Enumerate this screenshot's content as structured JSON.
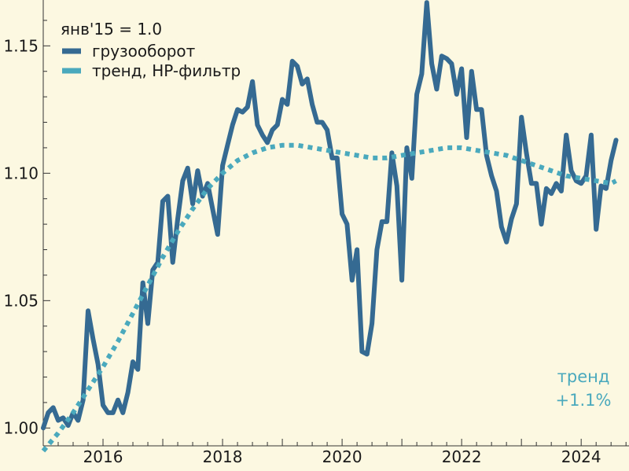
{
  "colors": {
    "background": "#fcf8e1",
    "series_main": "#356a92",
    "series_trend": "#4aa9bd",
    "axis": "#333333"
  },
  "legend": {
    "title": "янв'15 = 1.0",
    "items": [
      "грузооборот",
      "тренд, HP-фильтр"
    ]
  },
  "annotation": {
    "line1": "тренд",
    "line2": "+1.1%"
  },
  "chart_data": {
    "type": "line",
    "title": "",
    "xlabel": "",
    "ylabel": "",
    "xlim": [
      2015.0,
      2024.8
    ],
    "ylim": [
      0.993,
      1.168
    ],
    "xticks": [
      2016,
      2018,
      2020,
      2022,
      2024
    ],
    "xtick_labels": [
      "2016",
      "2018",
      "2020",
      "2022",
      "2024"
    ],
    "yticks": [
      1.0,
      1.05,
      1.1,
      1.15
    ],
    "ytick_labels": [
      "1.00",
      "1.05",
      "1.10",
      "1.15"
    ],
    "grid": false,
    "legend_position": "top-left",
    "series": [
      {
        "name": "грузооборот",
        "x": [
          2015.0,
          2015.083,
          2015.167,
          2015.25,
          2015.333,
          2015.417,
          2015.5,
          2015.583,
          2015.667,
          2015.75,
          2015.833,
          2015.917,
          2016.0,
          2016.083,
          2016.167,
          2016.25,
          2016.333,
          2016.417,
          2016.5,
          2016.583,
          2016.667,
          2016.75,
          2016.833,
          2016.917,
          2017.0,
          2017.083,
          2017.167,
          2017.25,
          2017.333,
          2017.417,
          2017.5,
          2017.583,
          2017.667,
          2017.75,
          2017.833,
          2017.917,
          2018.0,
          2018.083,
          2018.167,
          2018.25,
          2018.333,
          2018.417,
          2018.5,
          2018.583,
          2018.667,
          2018.75,
          2018.833,
          2018.917,
          2019.0,
          2019.083,
          2019.167,
          2019.25,
          2019.333,
          2019.417,
          2019.5,
          2019.583,
          2019.667,
          2019.75,
          2019.833,
          2019.917,
          2020.0,
          2020.083,
          2020.167,
          2020.25,
          2020.333,
          2020.417,
          2020.5,
          2020.583,
          2020.667,
          2020.75,
          2020.833,
          2020.917,
          2021.0,
          2021.083,
          2021.167,
          2021.25,
          2021.333,
          2021.417,
          2021.5,
          2021.583,
          2021.667,
          2021.75,
          2021.833,
          2021.917,
          2022.0,
          2022.083,
          2022.167,
          2022.25,
          2022.333,
          2022.417,
          2022.5,
          2022.583,
          2022.667,
          2022.75,
          2022.833,
          2022.917,
          2023.0,
          2023.083,
          2023.167,
          2023.25,
          2023.333,
          2023.417,
          2023.5,
          2023.583,
          2023.667,
          2023.75,
          2023.833,
          2023.917,
          2024.0,
          2024.083,
          2024.167,
          2024.25,
          2024.333,
          2024.417,
          2024.5,
          2024.583
        ],
        "values": [
          1.0,
          1.006,
          1.008,
          1.003,
          1.004,
          1.001,
          1.006,
          1.003,
          1.011,
          1.046,
          1.035,
          1.025,
          1.009,
          1.006,
          1.006,
          1.011,
          1.006,
          1.014,
          1.026,
          1.023,
          1.057,
          1.041,
          1.062,
          1.065,
          1.089,
          1.091,
          1.065,
          1.082,
          1.097,
          1.102,
          1.088,
          1.101,
          1.091,
          1.096,
          1.086,
          1.076,
          1.103,
          1.111,
          1.119,
          1.125,
          1.124,
          1.126,
          1.136,
          1.119,
          1.115,
          1.112,
          1.117,
          1.119,
          1.129,
          1.127,
          1.144,
          1.142,
          1.135,
          1.137,
          1.127,
          1.12,
          1.12,
          1.117,
          1.106,
          1.106,
          1.084,
          1.08,
          1.058,
          1.07,
          1.03,
          1.029,
          1.041,
          1.07,
          1.081,
          1.081,
          1.108,
          1.095,
          1.058,
          1.11,
          1.098,
          1.131,
          1.139,
          1.167,
          1.143,
          1.133,
          1.146,
          1.145,
          1.143,
          1.131,
          1.141,
          1.114,
          1.14,
          1.125,
          1.125,
          1.107,
          1.099,
          1.093,
          1.079,
          1.073,
          1.082,
          1.088,
          1.122,
          1.108,
          1.096,
          1.096,
          1.08,
          1.094,
          1.092,
          1.096,
          1.093,
          1.115,
          1.101,
          1.097,
          1.096,
          1.099,
          1.115,
          1.078,
          1.095,
          1.094,
          1.105,
          1.113
        ]
      },
      {
        "name": "тренд, HP-фильтр",
        "x": [
          2015.0,
          2015.25,
          2015.5,
          2015.75,
          2016.0,
          2016.25,
          2016.5,
          2016.75,
          2017.0,
          2017.25,
          2017.5,
          2017.75,
          2018.0,
          2018.25,
          2018.5,
          2018.75,
          2019.0,
          2019.25,
          2019.5,
          2019.75,
          2020.0,
          2020.25,
          2020.5,
          2020.75,
          2021.0,
          2021.25,
          2021.5,
          2021.75,
          2022.0,
          2022.25,
          2022.5,
          2022.75,
          2023.0,
          2023.25,
          2023.5,
          2023.75,
          2024.0,
          2024.25,
          2024.5,
          2024.583
        ],
        "values": [
          0.991,
          0.998,
          1.006,
          1.015,
          1.024,
          1.034,
          1.045,
          1.056,
          1.067,
          1.077,
          1.086,
          1.094,
          1.1,
          1.105,
          1.108,
          1.11,
          1.111,
          1.111,
          1.11,
          1.109,
          1.108,
          1.107,
          1.106,
          1.106,
          1.107,
          1.108,
          1.109,
          1.11,
          1.11,
          1.109,
          1.108,
          1.107,
          1.105,
          1.103,
          1.101,
          1.099,
          1.098,
          1.097,
          1.096,
          1.097
        ]
      }
    ]
  }
}
